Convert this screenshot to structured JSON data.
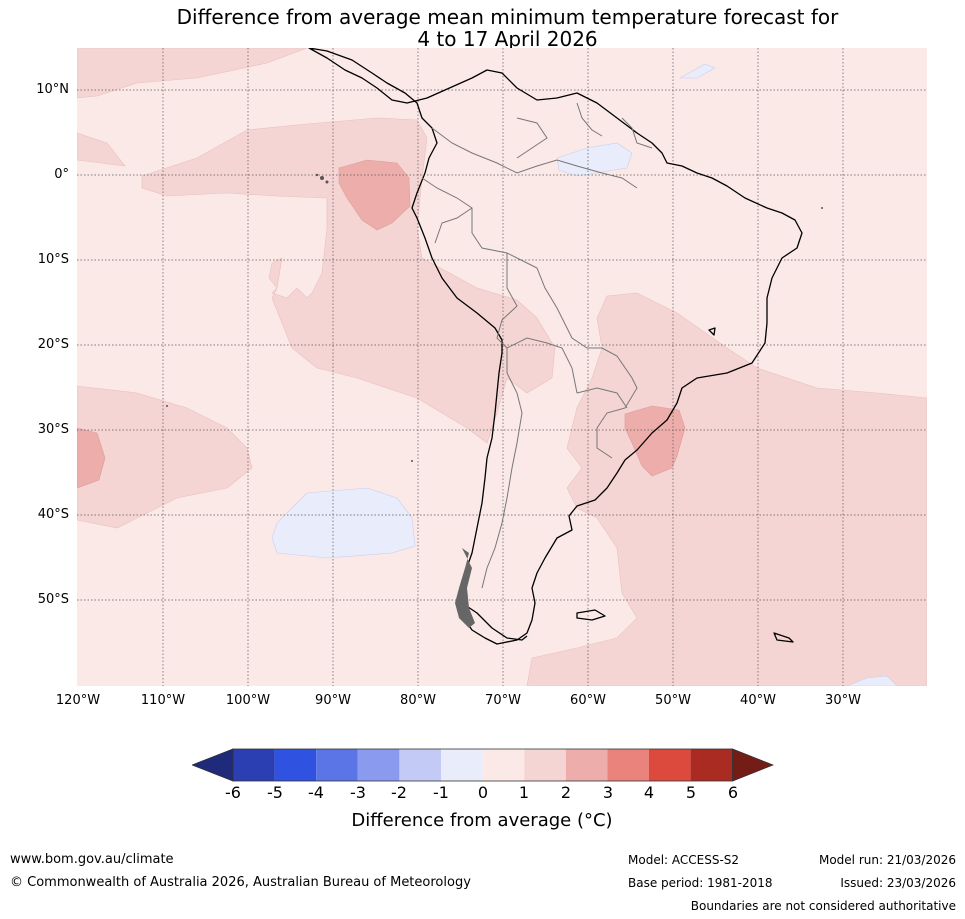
{
  "title": {
    "line1": "Difference from average mean minimum temperature forecast for",
    "line2": "4 to 17 April 2026"
  },
  "map": {
    "lat_labels": [
      "10°N",
      "0°",
      "10°S",
      "20°S",
      "30°S",
      "40°S",
      "50°S"
    ],
    "lon_labels": [
      "120°W",
      "110°W",
      "100°W",
      "90°W",
      "80°W",
      "70°W",
      "60°W",
      "50°W",
      "40°W",
      "30°W"
    ]
  },
  "colorbar": {
    "ticks": [
      "-6",
      "-5",
      "-4",
      "-3",
      "-2",
      "-1",
      "0",
      "1",
      "2",
      "3",
      "4",
      "5",
      "6"
    ],
    "colors": [
      "#1f2b7a",
      "#2b3fb2",
      "#2f52e0",
      "#5b75e6",
      "#8a9bef",
      "#c2caf5",
      "#e9ecfb",
      "#fbe9e8",
      "#f5d5d3",
      "#edaeab",
      "#e9837b",
      "#dc4a3e",
      "#aa2b22",
      "#741d17"
    ],
    "label": "Difference from average (°C)"
  },
  "footer": {
    "website": "www.bom.gov.au/climate",
    "copyright": "© Commonwealth of Australia 2026, Australian Bureau of Meteorology",
    "model": "Model: ACCESS-S2",
    "base_period": "Base period: 1981-2018",
    "model_run": "Model run: 21/03/2026",
    "issued": "Issued: 23/03/2026",
    "disclaimer": "Boundaries are not considered authoritative"
  }
}
